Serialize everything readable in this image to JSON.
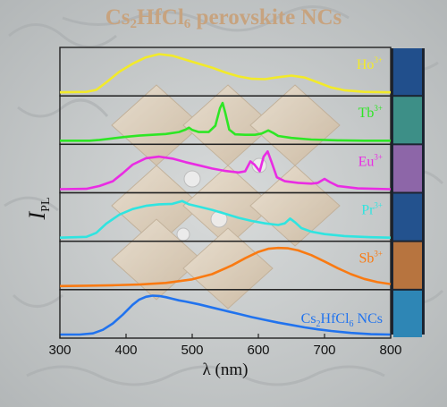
{
  "title": {
    "main": "Cs",
    "sub1": "2",
    "mid": "HfCl",
    "sub2": "6",
    "tail": " perovskite NCs"
  },
  "chart_data": {
    "type": "line",
    "title": "Cs2HfCl6 perovskite NCs",
    "xlabel": "λ (nm)",
    "ylabel": "I",
    "ylabel_sub": "PL",
    "xlim": [
      300,
      800
    ],
    "xticks": [
      300,
      400,
      500,
      600,
      700,
      800
    ],
    "grid": false,
    "stacked_panels": true,
    "series": [
      {
        "name": "Ho3+",
        "label_main": "Ho",
        "label_sup": "3+",
        "color": "#f2ea2a",
        "swatch": "#214f8c",
        "x": [
          300,
          340,
          355,
          370,
          390,
          410,
          430,
          450,
          470,
          490,
          510,
          530,
          550,
          570,
          590,
          610,
          630,
          650,
          670,
          690,
          710,
          730,
          760,
          800
        ],
        "y": [
          0.0,
          0.01,
          0.06,
          0.25,
          0.52,
          0.72,
          0.88,
          0.96,
          0.92,
          0.82,
          0.72,
          0.62,
          0.5,
          0.4,
          0.34,
          0.33,
          0.38,
          0.42,
          0.37,
          0.25,
          0.12,
          0.05,
          0.01,
          0.0
        ]
      },
      {
        "name": "Tb3+",
        "label_main": "Tb",
        "label_sup": "3+",
        "color": "#2ee625",
        "swatch": "#3d8f87",
        "x": [
          300,
          345,
          360,
          380,
          400,
          420,
          440,
          460,
          480,
          490,
          495,
          500,
          510,
          525,
          535,
          542,
          546,
          550,
          556,
          565,
          580,
          595,
          605,
          615,
          622,
          630,
          650,
          680,
          720,
          760,
          800
        ],
        "y": [
          0.0,
          0.0,
          0.02,
          0.06,
          0.1,
          0.13,
          0.15,
          0.17,
          0.22,
          0.28,
          0.33,
          0.27,
          0.22,
          0.22,
          0.38,
          0.82,
          0.95,
          0.7,
          0.28,
          0.16,
          0.15,
          0.15,
          0.18,
          0.26,
          0.2,
          0.12,
          0.07,
          0.03,
          0.01,
          0.0,
          0.0
        ]
      },
      {
        "name": "Eu3+",
        "label_main": "Eu",
        "label_sup": "3+",
        "color": "#e92ce3",
        "swatch": "#8d66a8",
        "x": [
          300,
          340,
          360,
          380,
          395,
          410,
          430,
          450,
          470,
          490,
          510,
          530,
          550,
          570,
          580,
          588,
          594,
          602,
          608,
          614,
          620,
          628,
          640,
          660,
          680,
          690,
          700,
          708,
          720,
          750,
          800
        ],
        "y": [
          0.0,
          0.01,
          0.08,
          0.2,
          0.4,
          0.62,
          0.78,
          0.82,
          0.77,
          0.68,
          0.6,
          0.52,
          0.46,
          0.42,
          0.45,
          0.7,
          0.62,
          0.45,
          0.82,
          0.95,
          0.68,
          0.3,
          0.2,
          0.16,
          0.14,
          0.16,
          0.26,
          0.18,
          0.08,
          0.02,
          0.0
        ]
      },
      {
        "name": "Pr3+",
        "label_main": "Pr",
        "label_sup": "3+",
        "color": "#30e4e0",
        "swatch": "#23528e",
        "x": [
          300,
          340,
          355,
          370,
          390,
          410,
          430,
          450,
          470,
          485,
          495,
          510,
          530,
          550,
          570,
          590,
          610,
          630,
          640,
          648,
          656,
          665,
          680,
          700,
          730,
          770,
          800
        ],
        "y": [
          0.0,
          0.02,
          0.12,
          0.35,
          0.58,
          0.72,
          0.8,
          0.84,
          0.85,
          0.92,
          0.84,
          0.78,
          0.7,
          0.6,
          0.5,
          0.42,
          0.36,
          0.32,
          0.36,
          0.48,
          0.38,
          0.24,
          0.15,
          0.09,
          0.04,
          0.01,
          0.0
        ]
      },
      {
        "name": "Sb3+",
        "label_main": "Sb",
        "label_sup": "3+",
        "color": "#f97a12",
        "swatch": "#b7743f",
        "x": [
          300,
          340,
          380,
          420,
          460,
          500,
          530,
          560,
          580,
          600,
          615,
          630,
          645,
          660,
          680,
          700,
          720,
          740,
          760,
          780,
          800
        ],
        "y": [
          0.0,
          0.01,
          0.02,
          0.04,
          0.08,
          0.17,
          0.3,
          0.52,
          0.7,
          0.86,
          0.94,
          0.96,
          0.95,
          0.9,
          0.78,
          0.62,
          0.45,
          0.3,
          0.18,
          0.1,
          0.05
        ]
      },
      {
        "name": "Cs2HfCl6 NCs",
        "label_main": "Cs",
        "label_sub1": "2",
        "label_mid": "HfCl",
        "label_sub2": "6",
        "label_tail": " NCs",
        "color": "#2173ee",
        "swatch": "#2e86b5",
        "x": [
          300,
          330,
          350,
          365,
          380,
          395,
          410,
          420,
          430,
          440,
          450,
          460,
          470,
          480,
          490,
          510,
          530,
          550,
          570,
          590,
          610,
          630,
          650,
          670,
          690,
          710,
          740,
          770,
          800
        ],
        "y": [
          0.0,
          0.0,
          0.03,
          0.12,
          0.28,
          0.5,
          0.75,
          0.88,
          0.95,
          0.98,
          0.97,
          0.94,
          0.9,
          0.86,
          0.83,
          0.76,
          0.68,
          0.6,
          0.52,
          0.44,
          0.37,
          0.3,
          0.24,
          0.18,
          0.13,
          0.09,
          0.04,
          0.01,
          0.0
        ]
      }
    ]
  }
}
